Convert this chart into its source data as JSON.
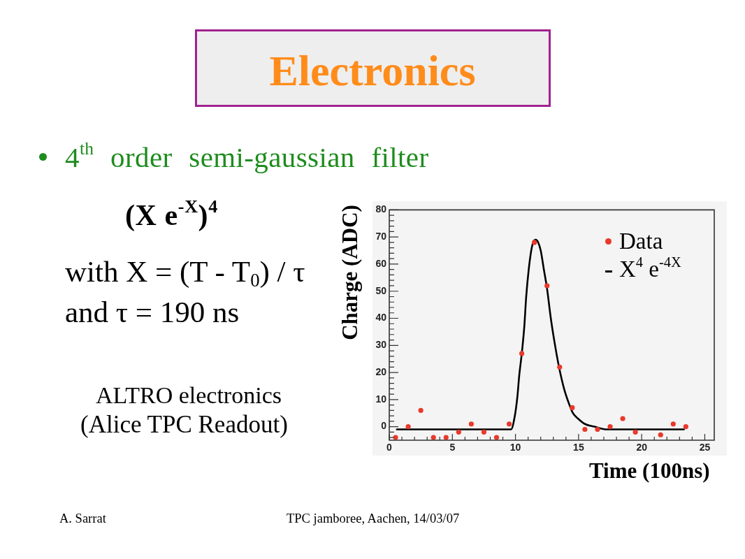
{
  "chart_data": {
    "type": "scatter",
    "title": "Electronics",
    "subtitle": "4$^{th}$ order semi-gaussian filter",
    "xlabel": "Time (100ns)",
    "ylabel": "Charge (ADC)",
    "annotations": [
      "(X e$^{-X}$)$^{4}$",
      "with X = (T - T$_{0}$) / τ",
      "and τ = 190 ns",
      "ALTRO electronics",
      "(Alice TPC Readout)",
      "A. Sarrat",
      "TPC jamboree, Aachen, 14/03/07"
    ],
    "xlim": [
      0,
      25.75
    ],
    "xticks": [
      0,
      {
        "value": 1,
        "label": null
      },
      {
        "value": 2,
        "label": null
      },
      {
        "value": 3,
        "label": null
      },
      {
        "value": 4,
        "label": null
      },
      5,
      {
        "value": 6,
        "label": null
      },
      {
        "value": 7,
        "label": null
      },
      {
        "value": 8,
        "label": null
      },
      {
        "value": 9,
        "label": null
      },
      10,
      {
        "value": 11,
        "label": null
      },
      {
        "value": 12,
        "label": null
      },
      {
        "value": 13,
        "label": null
      },
      {
        "value": 14,
        "label": null
      },
      15,
      {
        "value": 16,
        "label": null
      },
      {
        "value": 17,
        "label": null
      },
      {
        "value": 18,
        "label": null
      },
      {
        "value": 19,
        "label": null
      },
      20,
      {
        "value": 21,
        "label": null
      },
      {
        "value": 22,
        "label": null
      },
      {
        "value": 23,
        "label": null
      },
      {
        "value": 24,
        "label": null
      },
      25
    ],
    "ylim": [
      -5,
      80
    ],
    "yticks": [
      {
        "value": -4,
        "label": null
      },
      {
        "value": -2,
        "label": null
      },
      0,
      {
        "value": 2,
        "label": null
      },
      {
        "value": 4,
        "label": null
      },
      {
        "value": 6,
        "label": null
      },
      {
        "value": 8,
        "label": null
      },
      10,
      {
        "value": 12,
        "label": null
      },
      {
        "value": 14,
        "label": null
      },
      {
        "value": 16,
        "label": null
      },
      {
        "value": 18,
        "label": null
      },
      20,
      {
        "value": 22,
        "label": null
      },
      {
        "value": 24,
        "label": null
      },
      {
        "value": 26,
        "label": null
      },
      {
        "value": 28,
        "label": null
      },
      30,
      {
        "value": 32,
        "label": null
      },
      {
        "value": 34,
        "label": null
      },
      {
        "value": 36,
        "label": null
      },
      {
        "value": 38,
        "label": null
      },
      40,
      {
        "value": 42,
        "label": null
      },
      {
        "value": 44,
        "label": null
      },
      {
        "value": 46,
        "label": null
      },
      {
        "value": 48,
        "label": null
      },
      50,
      {
        "value": 52,
        "label": null
      },
      {
        "value": 54,
        "label": null
      },
      {
        "value": 56,
        "label": null
      },
      {
        "value": 58,
        "label": null
      },
      60,
      {
        "value": 62,
        "label": null
      },
      {
        "value": 64,
        "label": null
      },
      {
        "value": 66,
        "label": null
      },
      {
        "value": 68,
        "label": null
      },
      70,
      {
        "value": 72,
        "label": null
      },
      {
        "value": 74,
        "label": null
      },
      {
        "value": 76,
        "label": null
      },
      {
        "value": 78,
        "label": null
      },
      80
    ],
    "grid": false,
    "legend": "top right",
    "series": [
      {
        "name": "Data",
        "color": "#e8392b",
        "marker": "circle",
        "x": [
          0.5,
          1.5,
          2.5,
          3.5,
          4.5,
          5.5,
          6.5,
          7.5,
          8.5,
          9.5,
          10.5,
          11.5,
          12.5,
          13.5,
          14.5,
          15.5,
          16.5,
          17.5,
          18.5,
          19.5,
          20.5,
          21.5,
          22.5,
          23.5
        ],
        "values": [
          -4,
          0,
          6,
          -4,
          -4,
          -2,
          1,
          -2,
          -4,
          1,
          27,
          68,
          52,
          22,
          7,
          -1,
          -1,
          0,
          3,
          -2,
          null,
          -3,
          1,
          0
        ]
      },
      {
        "name": "X$^{4}$ e$^{-4X}$",
        "type": "line",
        "color": "#000000",
        "x": [
          0.6,
          9.65,
          9.95,
          10.15,
          10.3,
          10.5,
          10.7,
          10.85,
          11.05,
          11.25,
          11.4,
          11.6,
          11.8,
          12.0,
          12.25,
          12.5,
          12.8,
          13.1,
          13.45,
          13.85,
          14.2,
          14.55,
          14.95,
          15.5,
          16.25,
          17.15,
          23.35
        ],
        "values": [
          -1,
          -1,
          4,
          11,
          19,
          27,
          37,
          48,
          58,
          65,
          68,
          69,
          68,
          65,
          58,
          51,
          40,
          31,
          22,
          14,
          9,
          5,
          3,
          1,
          0,
          -1,
          -1
        ]
      }
    ]
  }
}
